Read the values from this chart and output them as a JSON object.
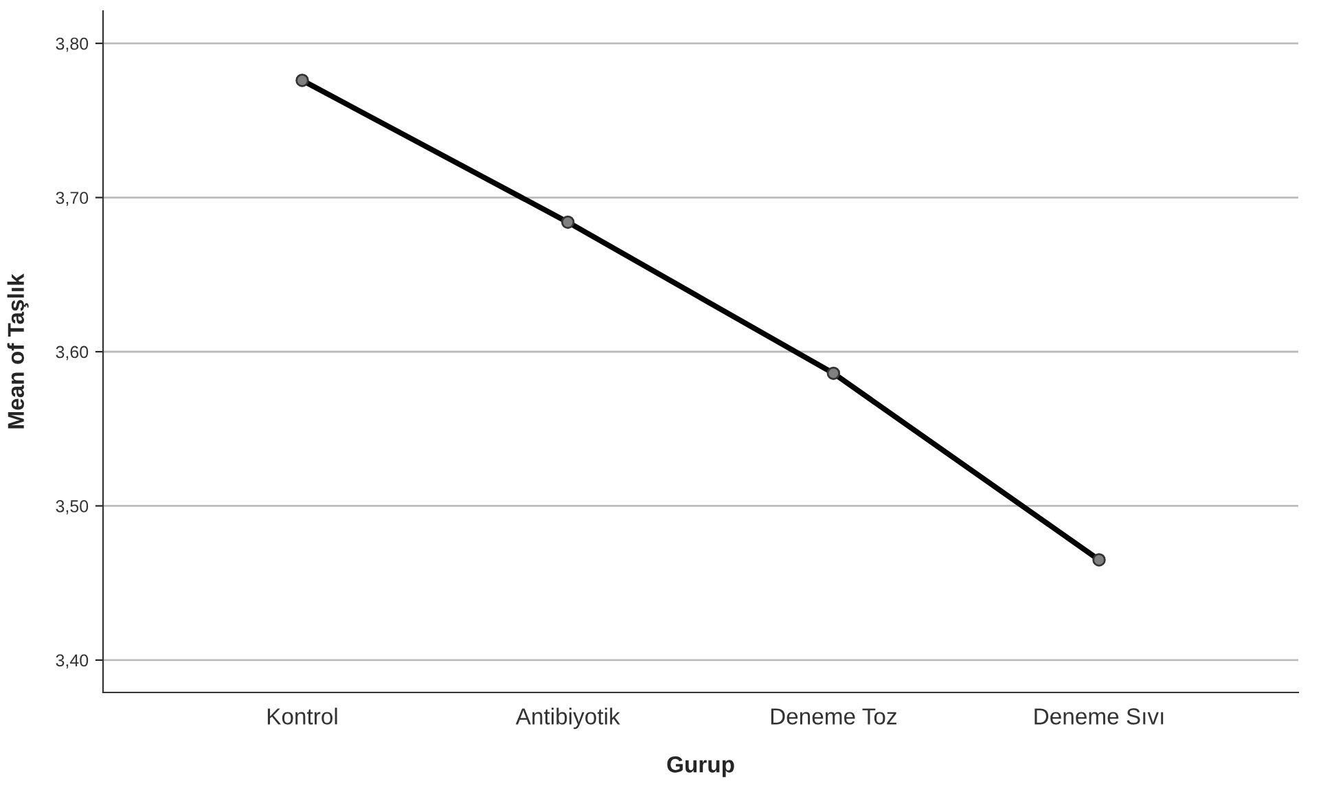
{
  "chart_data": {
    "type": "line",
    "xlabel": "Gurup",
    "ylabel": "Mean of Taşlık",
    "categories": [
      "Kontrol",
      "Antibiyotik",
      "Deneme Toz",
      "Deneme Sıvı"
    ],
    "series": [
      {
        "color": "#000000",
        "values": [
          3.776,
          3.684,
          3.586,
          3.465
        ]
      }
    ],
    "ylim": [
      3.379,
      3.821
    ],
    "yticks": [
      {
        "value": 3.4,
        "label": "3,40"
      },
      {
        "value": 3.5,
        "label": "3,50"
      },
      {
        "value": 3.6,
        "label": "3,60"
      },
      {
        "value": 3.7,
        "label": "3,70"
      },
      {
        "value": 3.8,
        "label": "3,80"
      }
    ],
    "grid": "y",
    "marker": "circle",
    "line_style": "solid",
    "legend": false
  }
}
